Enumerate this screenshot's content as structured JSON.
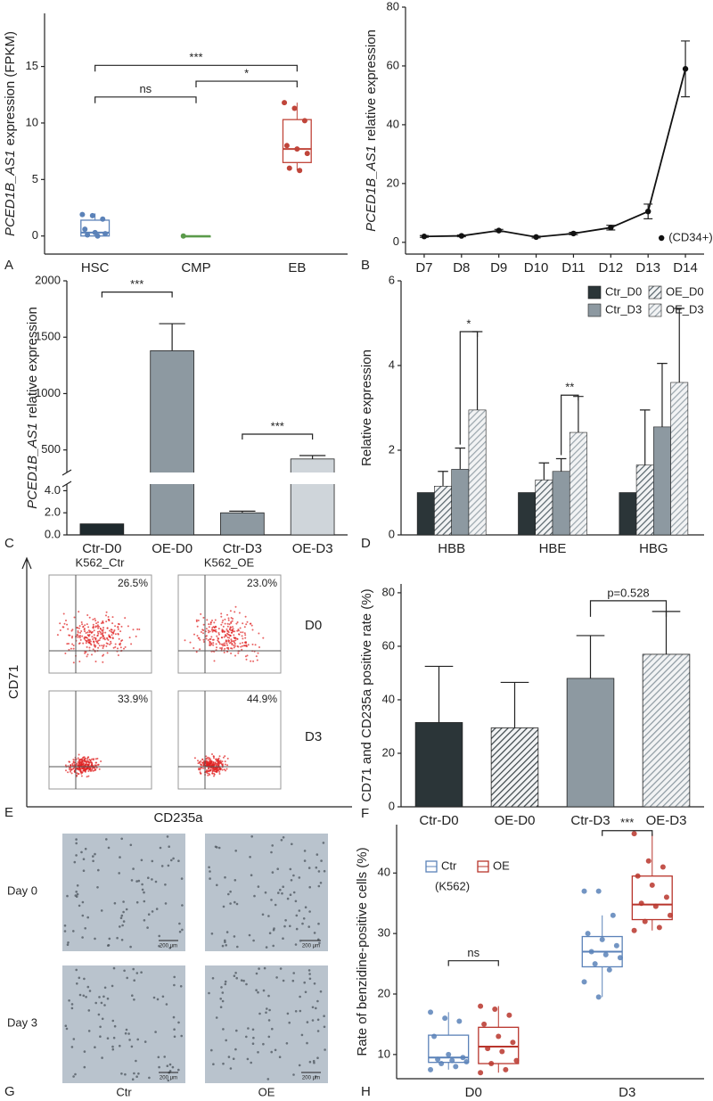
{
  "chart_data": [
    {
      "type": "box",
      "panel_label": "A",
      "y_label": [
        "PCED1B_AS1",
        "expression (FPKM)"
      ],
      "categories": [
        "HSC",
        "CMP",
        "EB"
      ],
      "colors": [
        "#5b82b8",
        "#5a9a4a",
        "#c0453a"
      ],
      "boxes": [
        {
          "min": 0,
          "q1": 0,
          "median": 0.3,
          "q3": 1.4,
          "max": 2.0
        },
        {
          "min": 0,
          "q1": 0,
          "median": 0,
          "q3": 0,
          "max": 0
        },
        {
          "min": 5.8,
          "q1": 6.5,
          "median": 7.7,
          "q3": 10.3,
          "max": 11.8
        }
      ],
      "points": [
        [
          1.9,
          1.8,
          1.5,
          0.6,
          0.3,
          0.2,
          0.1,
          0.0
        ],
        [
          0
        ],
        [
          11.8,
          11.3,
          10.2,
          8.0,
          7.7,
          7.3,
          6.0,
          5.8
        ]
      ],
      "ylim": [
        -1.6,
        19.7
      ],
      "yticks": [
        0,
        5,
        10,
        15
      ],
      "annotations": [
        {
          "text": "***",
          "from": 0,
          "to": 2,
          "y": 15.1
        },
        {
          "text": "*",
          "from": 1,
          "to": 2,
          "y": 13.7
        },
        {
          "text": "ns",
          "from": 0,
          "to": 1,
          "y": 12.3
        }
      ]
    },
    {
      "type": "line",
      "panel_label": "B",
      "y_label": [
        "PCED1B_AS1",
        "relative expression"
      ],
      "categories": [
        "D7",
        "D8",
        "D9",
        "D10",
        "D11",
        "D12",
        "D13",
        "D14"
      ],
      "values": [
        2,
        2.2,
        4,
        1.8,
        3,
        5,
        10.5,
        59
      ],
      "errors": [
        0.3,
        0.3,
        0.4,
        0.3,
        0.4,
        0.8,
        2.5,
        9.5
      ],
      "color": "#111111",
      "ylim": [
        -4,
        80
      ],
      "yticks": [
        0,
        20,
        40,
        60,
        80
      ],
      "note": "(CD34+)"
    },
    {
      "type": "broken_bar",
      "panel_label": "C",
      "y_label": [
        "PCED1B_AS1",
        "relative expression"
      ],
      "categories": [
        "Ctr-D0",
        "OE-D0",
        "Ctr-D3",
        "OE-D3"
      ],
      "values": [
        1,
        1380,
        2,
        420
      ],
      "errors": [
        0,
        240,
        0.15,
        30
      ],
      "colors": [
        "#1f2a2e",
        "#8d99a1",
        "#8d99a1",
        "#cfd5da"
      ],
      "segments": [
        {
          "ylim": [
            0,
            4.6
          ],
          "yticks": [
            {
              "value": 0,
              "label": "0.0"
            },
            {
              "value": 2,
              "label": "2.0"
            },
            {
              "value": 4,
              "label": "4.0"
            }
          ]
        },
        {
          "ylim": [
            300,
            2000
          ],
          "yticks": [
            500,
            1000,
            1500,
            2000
          ]
        }
      ],
      "annotations": [
        {
          "text": "***",
          "from": 0,
          "to": 1,
          "segment": 1,
          "y": 1900
        },
        {
          "text": "***",
          "from": 2,
          "to": 3,
          "segment": 1,
          "y": 640
        }
      ]
    },
    {
      "type": "grouped_bar",
      "panel_label": "D",
      "y_label": "Relative expression",
      "categories": [
        "HBB",
        "HBE",
        "HBG"
      ],
      "series": [
        {
          "name": "Ctr_D0",
          "color": "#2b3538",
          "hatch": false,
          "values": [
            1,
            1,
            1
          ]
        },
        {
          "name": "OE_D0",
          "color": "#56636a",
          "hatch": true,
          "values": [
            1.15,
            1.3,
            1.65
          ],
          "errors": [
            0.35,
            0.4,
            1.3
          ]
        },
        {
          "name": "Ctr_D3",
          "color": "#8d99a1",
          "hatch": false,
          "values": [
            1.55,
            1.5,
            2.55
          ],
          "errors": [
            0.5,
            0.3,
            1.5
          ]
        },
        {
          "name": "OE_D3",
          "color": "#9aa5ac",
          "hatch": true,
          "values": [
            2.95,
            2.42,
            3.6
          ],
          "errors": [
            1.85,
            0.85,
            1.75
          ]
        }
      ],
      "ylim": [
        0,
        6
      ],
      "yticks": [
        0,
        2,
        4,
        6
      ],
      "annotations": [
        {
          "text": "*",
          "category": 0,
          "from": 2,
          "to": 3,
          "y": 4.8
        },
        {
          "text": "**",
          "category": 1,
          "from": 2,
          "to": 3,
          "y": 3.3
        }
      ]
    },
    {
      "type": "bar",
      "panel_label": "F",
      "y_label": "CD71 and CD235a positive rate (%)",
      "categories": [
        "Ctr-D0",
        "OE-D0",
        "Ctr-D3",
        "OE-D3"
      ],
      "values": [
        31.5,
        29.5,
        48,
        57
      ],
      "errors": [
        21,
        17,
        16,
        16
      ],
      "colors": [
        "#2b3538",
        "#3a4448",
        "#8d99a1",
        "#8d99a1"
      ],
      "hatch": [
        false,
        true,
        false,
        true
      ],
      "ylim": [
        0,
        83.3
      ],
      "yticks": [
        0,
        20,
        40,
        60,
        80
      ],
      "annotations": [
        {
          "text": "p=0.528",
          "from": 2,
          "to": 3,
          "y": 77
        }
      ]
    },
    {
      "type": "grouped_box",
      "panel_label": "H",
      "y_label": "Rate of benzidine-positive cells  (%)",
      "note": "(K562)",
      "categories": [
        "D0",
        "D3"
      ],
      "series": [
        {
          "name": "Ctr",
          "color": "#5b82b8",
          "boxes": [
            {
              "min": 7.5,
              "q1": 8.7,
              "median": 9.5,
              "q3": 13.2,
              "max": 17
            },
            {
              "min": 19.5,
              "q1": 24.5,
              "median": 27,
              "q3": 29.5,
              "max": 33
            }
          ],
          "points": [
            [
              17,
              16,
              15.5,
              13,
              10,
              9.5,
              9.2,
              9,
              8.8,
              8.5,
              8,
              7.5
            ],
            [
              37,
              37,
              33,
              30,
              29,
              28,
              27,
              26.5,
              26,
              25,
              24,
              22,
              19.5
            ]
          ]
        },
        {
          "name": "OE",
          "color": "#b8352c",
          "boxes": [
            {
              "min": 7,
              "q1": 8.5,
              "median": 11.3,
              "q3": 14.5,
              "max": 18
            },
            {
              "min": 30.5,
              "q1": 32.3,
              "median": 34.8,
              "q3": 39.5,
              "max": 46.5
            }
          ],
          "points": [
            [
              18,
              17.5,
              16.5,
              15,
              13,
              12,
              11,
              10.5,
              9,
              8.5,
              7.5,
              7
            ],
            [
              46.5,
              42,
              41,
              39.5,
              38,
              36,
              35,
              34.5,
              33,
              32,
              31,
              30.5
            ]
          ]
        }
      ],
      "ylim": [
        6,
        48
      ],
      "yticks": [
        10,
        20,
        30,
        40
      ],
      "annotations": [
        {
          "text": "ns",
          "category": 0,
          "y": 25.5
        },
        {
          "text": "***",
          "category": 1,
          "y": 47
        }
      ]
    }
  ],
  "flow": {
    "panel_label": "E",
    "columns": [
      "K562_Ctr",
      "K562_OE"
    ],
    "rows": [
      "D0",
      "D3"
    ],
    "percentages": [
      [
        "26.5%",
        "23.0%"
      ],
      [
        "33.9%",
        "44.9%"
      ]
    ],
    "y_label": "CD71",
    "x_label": "CD235a"
  },
  "microscopy": {
    "panel_label": "G",
    "rows": [
      "Day 0",
      "Day 3"
    ],
    "columns": [
      "Ctr",
      "OE"
    ],
    "scale_bar": "200 μm"
  }
}
